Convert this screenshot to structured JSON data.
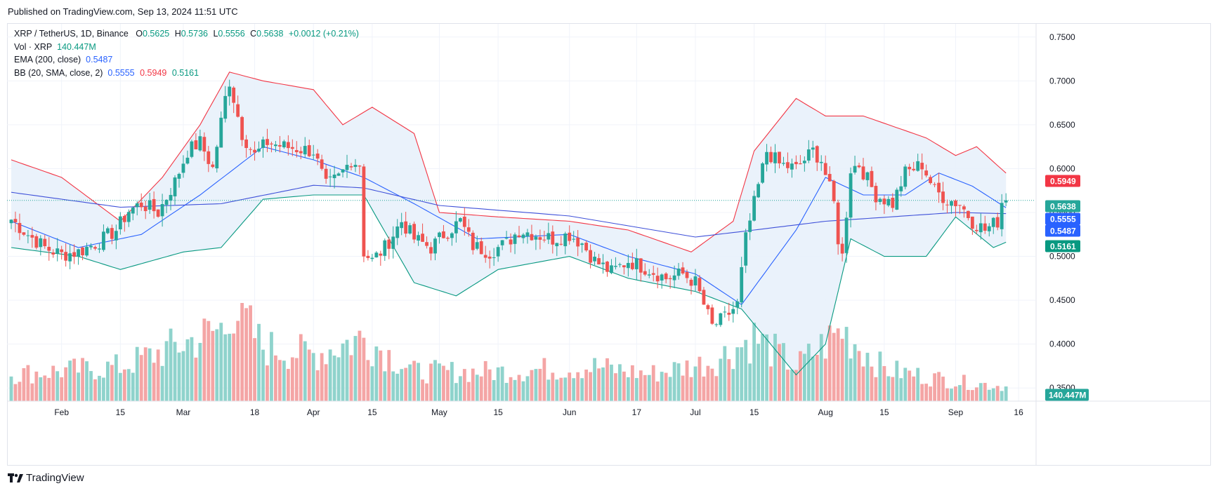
{
  "header": {
    "published": "Published on TradingView.com, Sep 13, 2024 11:51 UTC"
  },
  "legend": {
    "symbol": "XRP / TetherUS, 1D, Binance",
    "o_label": "O",
    "o": "0.5625",
    "h_label": "H",
    "h": "0.5736",
    "l_label": "L",
    "l": "0.5556",
    "c_label": "C",
    "c": "0.5638",
    "change": "+0.0012 (+0.21%)",
    "vol_label": "Vol · XRP",
    "vol": "140.447M",
    "ema_label": "EMA (200, close)",
    "ema": "0.5487",
    "bb_label": "BB (20, SMA, close, 2)",
    "bb_basis": "0.5555",
    "bb_upper": "0.5949",
    "bb_lower": "0.5161"
  },
  "footer": {
    "brand": "TradingView"
  },
  "colors": {
    "up": "#26a69a",
    "down": "#ef5350",
    "vol_up": "#8fd3cc",
    "vol_down": "#f4a5a5",
    "ema": "#2962ff",
    "bb_basis": "#2962ff",
    "bb_upper": "#f23645",
    "bb_lower": "#089981",
    "bb_fill": "#e8f1fb",
    "grid": "#f0f3fa",
    "text": "#131722"
  },
  "chart_data": {
    "type": "candlestick",
    "title": "XRP / TetherUS, 1D, Binance",
    "y_axis_ticks": [
      "0.7500",
      "0.7000",
      "0.6500",
      "0.6000",
      "0.5500",
      "0.5000",
      "0.4500",
      "0.4000",
      "0.3500"
    ],
    "x_axis_ticks": [
      {
        "date": "2024-02-01",
        "label": "Feb"
      },
      {
        "date": "2024-02-15",
        "label": "15"
      },
      {
        "date": "2024-03-01",
        "label": "Mar"
      },
      {
        "date": "2024-03-18",
        "label": "18"
      },
      {
        "date": "2024-04-01",
        "label": "Apr"
      },
      {
        "date": "2024-04-15",
        "label": "15"
      },
      {
        "date": "2024-05-01",
        "label": "May"
      },
      {
        "date": "2024-05-15",
        "label": "15"
      },
      {
        "date": "2024-06-01",
        "label": "Jun"
      },
      {
        "date": "2024-06-17",
        "label": "17"
      },
      {
        "date": "2024-07-01",
        "label": "Jul"
      },
      {
        "date": "2024-07-15",
        "label": "15"
      },
      {
        "date": "2024-08-01",
        "label": "Aug"
      },
      {
        "date": "2024-08-15",
        "label": "15"
      },
      {
        "date": "2024-09-01",
        "label": "Sep"
      },
      {
        "date": "2024-09-16",
        "label": "16"
      }
    ],
    "y_range": [
      0.335,
      0.765
    ],
    "last_price": 0.5638,
    "price_tags": [
      {
        "value": 0.5949,
        "label": "0.5949",
        "color": "#f23645"
      },
      {
        "value": 0.5638,
        "label": "0.5638",
        "color": "#26a69a"
      },
      {
        "value": 0.5555,
        "label": "0.5555",
        "color": "#2962ff"
      },
      {
        "value": 0.5487,
        "label": "0.5487",
        "color": "#2962ff"
      },
      {
        "value": 0.5161,
        "label": "0.5161",
        "color": "#089981"
      }
    ],
    "volume_tag": {
      "label": "140.447M",
      "color": "#26a69a"
    },
    "close_anchors": [
      [
        "2024-01-20",
        0.542
      ],
      [
        "2024-01-24",
        0.525
      ],
      [
        "2024-01-28",
        0.51
      ],
      [
        "2024-02-01",
        0.502
      ],
      [
        "2024-02-05",
        0.505
      ],
      [
        "2024-02-10",
        0.517
      ],
      [
        "2024-02-14",
        0.53
      ],
      [
        "2024-02-17",
        0.552
      ],
      [
        "2024-02-20",
        0.56
      ],
      [
        "2024-02-24",
        0.55
      ],
      [
        "2024-02-28",
        0.585
      ],
      [
        "2024-03-02",
        0.62
      ],
      [
        "2024-03-05",
        0.63
      ],
      [
        "2024-03-08",
        0.6
      ],
      [
        "2024-03-11",
        0.68
      ],
      [
        "2024-03-12",
        0.7
      ],
      [
        "2024-03-15",
        0.64
      ],
      [
        "2024-03-18",
        0.615
      ],
      [
        "2024-03-21",
        0.63
      ],
      [
        "2024-03-25",
        0.625
      ],
      [
        "2024-03-28",
        0.623
      ],
      [
        "2024-04-01",
        0.62
      ],
      [
        "2024-04-04",
        0.58
      ],
      [
        "2024-04-07",
        0.59
      ],
      [
        "2024-04-10",
        0.61
      ],
      [
        "2024-04-12",
        0.605
      ],
      [
        "2024-04-13",
        0.505
      ],
      [
        "2024-04-15",
        0.495
      ],
      [
        "2024-04-18",
        0.51
      ],
      [
        "2024-04-22",
        0.54
      ],
      [
        "2024-04-25",
        0.52
      ],
      [
        "2024-04-29",
        0.51
      ],
      [
        "2024-05-02",
        0.525
      ],
      [
        "2024-05-06",
        0.54
      ],
      [
        "2024-05-09",
        0.512
      ],
      [
        "2024-05-13",
        0.505
      ],
      [
        "2024-05-17",
        0.515
      ],
      [
        "2024-05-20",
        0.53
      ],
      [
        "2024-05-24",
        0.525
      ],
      [
        "2024-05-28",
        0.52
      ],
      [
        "2024-06-01",
        0.525
      ],
      [
        "2024-06-04",
        0.515
      ],
      [
        "2024-06-07",
        0.495
      ],
      [
        "2024-06-11",
        0.482
      ],
      [
        "2024-06-15",
        0.495
      ],
      [
        "2024-06-20",
        0.485
      ],
      [
        "2024-06-24",
        0.475
      ],
      [
        "2024-06-28",
        0.48
      ],
      [
        "2024-07-01",
        0.47
      ],
      [
        "2024-07-03",
        0.445
      ],
      [
        "2024-07-05",
        0.42
      ],
      [
        "2024-07-08",
        0.43
      ],
      [
        "2024-07-11",
        0.445
      ],
      [
        "2024-07-13",
        0.52
      ],
      [
        "2024-07-15",
        0.56
      ],
      [
        "2024-07-18",
        0.62
      ],
      [
        "2024-07-21",
        0.605
      ],
      [
        "2024-07-25",
        0.6
      ],
      [
        "2024-07-29",
        0.62
      ],
      [
        "2024-07-31",
        0.61
      ],
      [
        "2024-08-03",
        0.56
      ],
      [
        "2024-08-04",
        0.52
      ],
      [
        "2024-08-05",
        0.5
      ],
      [
        "2024-08-07",
        0.6
      ],
      [
        "2024-08-09",
        0.605
      ],
      [
        "2024-08-13",
        0.57
      ],
      [
        "2024-08-17",
        0.56
      ],
      [
        "2024-08-20",
        0.595
      ],
      [
        "2024-08-24",
        0.605
      ],
      [
        "2024-08-27",
        0.575
      ],
      [
        "2024-08-30",
        0.565
      ],
      [
        "2024-09-02",
        0.56
      ],
      [
        "2024-09-05",
        0.54
      ],
      [
        "2024-09-08",
        0.53
      ],
      [
        "2024-09-11",
        0.54
      ],
      [
        "2024-09-12",
        0.5626
      ],
      [
        "2024-09-13",
        0.5638
      ]
    ],
    "ema200_anchors": [
      [
        "2024-01-20",
        0.573
      ],
      [
        "2024-02-15",
        0.556
      ],
      [
        "2024-03-10",
        0.56
      ],
      [
        "2024-04-01",
        0.581
      ],
      [
        "2024-04-13",
        0.578
      ],
      [
        "2024-05-01",
        0.558
      ],
      [
        "2024-06-01",
        0.546
      ],
      [
        "2024-07-01",
        0.522
      ],
      [
        "2024-07-15",
        0.53
      ],
      [
        "2024-08-01",
        0.54
      ],
      [
        "2024-09-01",
        0.55
      ],
      [
        "2024-09-13",
        0.5487
      ]
    ],
    "bb_basis_anchors": [
      [
        "2024-01-20",
        0.54
      ],
      [
        "2024-02-05",
        0.51
      ],
      [
        "2024-02-20",
        0.525
      ],
      [
        "2024-03-05",
        0.57
      ],
      [
        "2024-03-20",
        0.625
      ],
      [
        "2024-04-01",
        0.61
      ],
      [
        "2024-04-13",
        0.59
      ],
      [
        "2024-04-25",
        0.56
      ],
      [
        "2024-05-10",
        0.52
      ],
      [
        "2024-06-01",
        0.525
      ],
      [
        "2024-06-15",
        0.5
      ],
      [
        "2024-07-01",
        0.48
      ],
      [
        "2024-07-12",
        0.445
      ],
      [
        "2024-07-25",
        0.53
      ],
      [
        "2024-08-01",
        0.59
      ],
      [
        "2024-08-10",
        0.57
      ],
      [
        "2024-08-20",
        0.57
      ],
      [
        "2024-08-28",
        0.595
      ],
      [
        "2024-09-05",
        0.58
      ],
      [
        "2024-09-13",
        0.5555
      ]
    ],
    "bb_upper_anchors": [
      [
        "2024-01-20",
        0.61
      ],
      [
        "2024-02-01",
        0.59
      ],
      [
        "2024-02-15",
        0.54
      ],
      [
        "2024-02-25",
        0.59
      ],
      [
        "2024-03-05",
        0.65
      ],
      [
        "2024-03-12",
        0.71
      ],
      [
        "2024-03-20",
        0.7
      ],
      [
        "2024-04-01",
        0.69
      ],
      [
        "2024-04-08",
        0.65
      ],
      [
        "2024-04-15",
        0.67
      ],
      [
        "2024-04-25",
        0.64
      ],
      [
        "2024-05-01",
        0.55
      ],
      [
        "2024-05-15",
        0.545
      ],
      [
        "2024-06-01",
        0.54
      ],
      [
        "2024-06-15",
        0.53
      ],
      [
        "2024-06-30",
        0.505
      ],
      [
        "2024-07-10",
        0.54
      ],
      [
        "2024-07-15",
        0.62
      ],
      [
        "2024-07-25",
        0.68
      ],
      [
        "2024-08-01",
        0.66
      ],
      [
        "2024-08-10",
        0.66
      ],
      [
        "2024-08-25",
        0.635
      ],
      [
        "2024-09-01",
        0.615
      ],
      [
        "2024-09-06",
        0.625
      ],
      [
        "2024-09-13",
        0.5949
      ]
    ],
    "bb_lower_anchors": [
      [
        "2024-01-20",
        0.51
      ],
      [
        "2024-02-05",
        0.5
      ],
      [
        "2024-02-15",
        0.485
      ],
      [
        "2024-03-01",
        0.505
      ],
      [
        "2024-03-10",
        0.51
      ],
      [
        "2024-03-20",
        0.565
      ],
      [
        "2024-04-01",
        0.57
      ],
      [
        "2024-04-13",
        0.57
      ],
      [
        "2024-04-25",
        0.47
      ],
      [
        "2024-05-05",
        0.455
      ],
      [
        "2024-05-15",
        0.485
      ],
      [
        "2024-06-01",
        0.5
      ],
      [
        "2024-06-15",
        0.475
      ],
      [
        "2024-07-01",
        0.46
      ],
      [
        "2024-07-12",
        0.44
      ],
      [
        "2024-07-25",
        0.365
      ],
      [
        "2024-08-01",
        0.4
      ],
      [
        "2024-08-07",
        0.52
      ],
      [
        "2024-08-15",
        0.5
      ],
      [
        "2024-08-25",
        0.5
      ],
      [
        "2024-09-01",
        0.545
      ],
      [
        "2024-09-10",
        0.51
      ],
      [
        "2024-09-13",
        0.5161
      ]
    ],
    "volume_anchors": [
      [
        "2024-01-20",
        0.55
      ],
      [
        "2024-02-15",
        0.7
      ],
      [
        "2024-03-05",
        1.3
      ],
      [
        "2024-03-11",
        1.5
      ],
      [
        "2024-03-12",
        2.05
      ],
      [
        "2024-03-20",
        1.1
      ],
      [
        "2024-04-01",
        0.95
      ],
      [
        "2024-04-13",
        1.3
      ],
      [
        "2024-04-25",
        0.6
      ],
      [
        "2024-05-15",
        0.6
      ],
      [
        "2024-06-07",
        0.7
      ],
      [
        "2024-06-20",
        0.55
      ],
      [
        "2024-07-05",
        0.8
      ],
      [
        "2024-07-15",
        1.3
      ],
      [
        "2024-07-25",
        0.7
      ],
      [
        "2024-08-05",
        1.45
      ],
      [
        "2024-08-15",
        0.65
      ],
      [
        "2024-09-01",
        0.4
      ],
      [
        "2024-09-13",
        0.3
      ]
    ],
    "volume_units": "relative"
  }
}
